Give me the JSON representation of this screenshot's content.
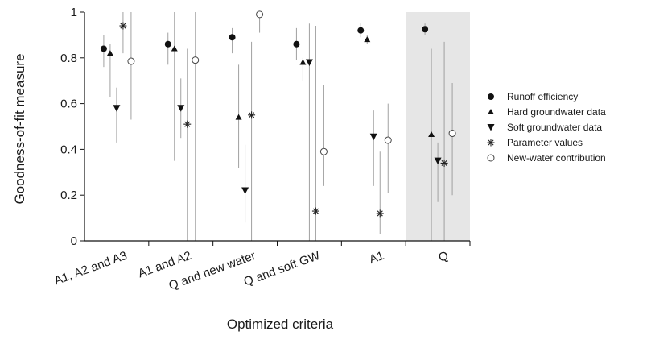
{
  "chart_data": {
    "type": "scatter",
    "xlabel": "Optimized criteria",
    "ylabel": "Goodness-of-fit measure",
    "ylim": [
      0,
      1
    ],
    "yticks": [
      "0",
      "0.2",
      "0.4",
      "0.6",
      "0.8",
      "1"
    ],
    "categories": [
      "A1, A2 and A3",
      "A1 and A2",
      "Q and new water",
      "Q and soft GW",
      "A1",
      "Q"
    ],
    "highlighted_category": "Q",
    "highlight_color": "#e6e6e6",
    "errorbar_color": "#a0a0a0",
    "marker_color": "#111111",
    "legend_position": "right",
    "series": [
      {
        "name": "Runoff efficiency",
        "marker": "filled-circle",
        "values": [
          0.84,
          0.86,
          0.89,
          0.86,
          0.92,
          0.925
        ],
        "low": [
          0.76,
          0.77,
          0.82,
          0.79,
          0.89,
          0.9
        ],
        "high": [
          0.9,
          0.91,
          0.93,
          0.93,
          0.95,
          0.95
        ]
      },
      {
        "name": "Hard groundwater data",
        "marker": "triangle-up",
        "values": [
          0.82,
          0.84,
          0.54,
          0.78,
          0.88,
          0.465
        ],
        "low": [
          0.63,
          0.35,
          0.32,
          0.7,
          0.86,
          0.0
        ],
        "high": [
          0.86,
          1.0,
          0.77,
          0.8,
          0.9,
          0.84
        ]
      },
      {
        "name": "Soft groundwater data",
        "marker": "triangle-down",
        "values": [
          0.58,
          0.58,
          0.22,
          0.78,
          0.455,
          0.35
        ],
        "low": [
          0.43,
          0.45,
          0.08,
          0.0,
          0.24,
          0.17
        ],
        "high": [
          0.67,
          0.71,
          0.42,
          0.95,
          0.57,
          0.43
        ]
      },
      {
        "name": "Parameter values",
        "marker": "asterisk",
        "values": [
          0.94,
          0.51,
          0.55,
          0.13,
          0.12,
          0.34
        ],
        "low": [
          0.82,
          0.0,
          0.0,
          0.0,
          0.03,
          0.0
        ],
        "high": [
          1.0,
          0.84,
          0.87,
          0.94,
          0.39,
          0.87
        ]
      },
      {
        "name": "New-water contribution",
        "marker": "open-circle",
        "values": [
          0.785,
          0.79,
          0.99,
          0.39,
          0.44,
          0.47
        ],
        "low": [
          0.53,
          0.0,
          0.91,
          0.24,
          0.21,
          0.2
        ],
        "high": [
          1.0,
          1.0,
          1.0,
          0.68,
          0.6,
          0.69
        ]
      }
    ]
  }
}
